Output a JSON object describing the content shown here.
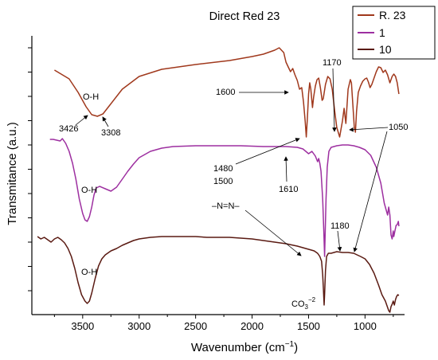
{
  "chart_data": {
    "type": "line",
    "title": "Direct Red 23",
    "xlabel_main": "Wavenumber (cm",
    "xlabel_sup": "−1",
    "xlabel_end": ")",
    "ylabel": "Transmitance (a.u.)",
    "xlim": [
      3950,
      650
    ],
    "x_reversed": true,
    "x_ticks": [
      3500,
      3000,
      2500,
      2000,
      1500,
      1000
    ],
    "y_ticks_labeled": false,
    "grid": false,
    "legend_position": "top-right",
    "series": [
      {
        "name": "R. 23",
        "color": "#a0381c",
        "points": [
          [
            3750,
            88
          ],
          [
            3620,
            99
          ],
          [
            3540,
            116
          ],
          [
            3470,
            134
          ],
          [
            3420,
            144
          ],
          [
            3370,
            146
          ],
          [
            3320,
            143
          ],
          [
            3260,
            132
          ],
          [
            3150,
            112
          ],
          [
            3000,
            96
          ],
          [
            2800,
            87
          ],
          [
            2500,
            81
          ],
          [
            2200,
            76
          ],
          [
            2000,
            71
          ],
          [
            1900,
            68
          ],
          [
            1800,
            63
          ],
          [
            1760,
            60
          ],
          [
            1720,
            66
          ],
          [
            1700,
            78
          ],
          [
            1680,
            84
          ],
          [
            1660,
            90
          ],
          [
            1640,
            86
          ],
          [
            1620,
            94
          ],
          [
            1600,
            101
          ],
          [
            1580,
            112
          ],
          [
            1560,
            110
          ],
          [
            1545,
            128
          ],
          [
            1530,
            152
          ],
          [
            1520,
            172
          ],
          [
            1510,
            148
          ],
          [
            1500,
            118
          ],
          [
            1490,
            104
          ],
          [
            1480,
            112
          ],
          [
            1465,
            135
          ],
          [
            1455,
            122
          ],
          [
            1440,
            108
          ],
          [
            1425,
            100
          ],
          [
            1410,
            98
          ],
          [
            1395,
            110
          ],
          [
            1380,
            126
          ],
          [
            1370,
            124
          ],
          [
            1350,
            106
          ],
          [
            1330,
            96
          ],
          [
            1310,
            99
          ],
          [
            1290,
            112
          ],
          [
            1270,
            138
          ],
          [
            1250,
            160
          ],
          [
            1225,
            172
          ],
          [
            1200,
            152
          ],
          [
            1185,
            136
          ],
          [
            1170,
            155
          ],
          [
            1150,
            112
          ],
          [
            1130,
            100
          ],
          [
            1120,
            104
          ],
          [
            1105,
            138
          ],
          [
            1095,
            160
          ],
          [
            1085,
            166
          ],
          [
            1075,
            140
          ],
          [
            1060,
            116
          ],
          [
            1040,
            108
          ],
          [
            1020,
            102
          ],
          [
            1000,
            99
          ],
          [
            985,
            98
          ],
          [
            970,
            103
          ],
          [
            955,
            110
          ],
          [
            940,
            106
          ],
          [
            920,
            98
          ],
          [
            900,
            90
          ],
          [
            880,
            84
          ],
          [
            860,
            85
          ],
          [
            840,
            91
          ],
          [
            820,
            88
          ],
          [
            800,
            94
          ],
          [
            780,
            104
          ],
          [
            760,
            96
          ],
          [
            745,
            93
          ],
          [
            730,
            96
          ],
          [
            715,
            104
          ],
          [
            700,
            118
          ]
        ]
      },
      {
        "name": "1",
        "color": "#9d2fa0",
        "points": [
          [
            3790,
            175
          ],
          [
            3760,
            175
          ],
          [
            3730,
            176
          ],
          [
            3700,
            177
          ],
          [
            3680,
            174
          ],
          [
            3650,
            180
          ],
          [
            3620,
            190
          ],
          [
            3590,
            205
          ],
          [
            3560,
            225
          ],
          [
            3530,
            250
          ],
          [
            3500,
            268
          ],
          [
            3480,
            276
          ],
          [
            3460,
            278
          ],
          [
            3440,
            272
          ],
          [
            3420,
            260
          ],
          [
            3400,
            245
          ],
          [
            3380,
            236
          ],
          [
            3350,
            234
          ],
          [
            3300,
            237
          ],
          [
            3250,
            240
          ],
          [
            3200,
            235
          ],
          [
            3150,
            225
          ],
          [
            3100,
            215
          ],
          [
            3050,
            206
          ],
          [
            3000,
            198
          ],
          [
            2900,
            190
          ],
          [
            2800,
            186
          ],
          [
            2700,
            184
          ],
          [
            2500,
            183
          ],
          [
            2300,
            183
          ],
          [
            2100,
            183
          ],
          [
            1900,
            184
          ],
          [
            1700,
            184
          ],
          [
            1600,
            185
          ],
          [
            1550,
            187
          ],
          [
            1500,
            193
          ],
          [
            1470,
            190
          ],
          [
            1440,
            196
          ],
          [
            1420,
            203
          ],
          [
            1410,
            199
          ],
          [
            1400,
            205
          ],
          [
            1390,
            215
          ],
          [
            1375,
            250
          ],
          [
            1365,
            290
          ],
          [
            1358,
            322
          ],
          [
            1352,
            290
          ],
          [
            1345,
            250
          ],
          [
            1335,
            210
          ],
          [
            1320,
            190
          ],
          [
            1300,
            185
          ],
          [
            1250,
            183
          ],
          [
            1200,
            182
          ],
          [
            1150,
            182
          ],
          [
            1100,
            183
          ],
          [
            1050,
            185
          ],
          [
            1000,
            188
          ],
          [
            950,
            195
          ],
          [
            900,
            210
          ],
          [
            860,
            230
          ],
          [
            830,
            255
          ],
          [
            800,
            270
          ],
          [
            790,
            260
          ],
          [
            780,
            270
          ],
          [
            770,
            295
          ],
          [
            760,
            300
          ],
          [
            750,
            290
          ],
          [
            745,
            297
          ],
          [
            735,
            290
          ],
          [
            725,
            283
          ],
          [
            715,
            282
          ],
          [
            705,
            278
          ],
          [
            700,
            284
          ]
        ]
      },
      {
        "name": "10",
        "color": "#5a1a12",
        "points": [
          [
            3900,
            297
          ],
          [
            3870,
            300
          ],
          [
            3840,
            298
          ],
          [
            3810,
            301
          ],
          [
            3780,
            304
          ],
          [
            3750,
            300
          ],
          [
            3720,
            298
          ],
          [
            3690,
            301
          ],
          [
            3660,
            305
          ],
          [
            3630,
            312
          ],
          [
            3600,
            322
          ],
          [
            3570,
            337
          ],
          [
            3540,
            355
          ],
          [
            3510,
            370
          ],
          [
            3480,
            378
          ],
          [
            3460,
            381
          ],
          [
            3440,
            378
          ],
          [
            3420,
            368
          ],
          [
            3390,
            350
          ],
          [
            3360,
            334
          ],
          [
            3330,
            325
          ],
          [
            3300,
            320
          ],
          [
            3250,
            315
          ],
          [
            3200,
            312
          ],
          [
            3150,
            308
          ],
          [
            3100,
            305
          ],
          [
            3050,
            302
          ],
          [
            3000,
            300
          ],
          [
            2900,
            298
          ],
          [
            2800,
            297
          ],
          [
            2700,
            297
          ],
          [
            2600,
            297
          ],
          [
            2500,
            297
          ],
          [
            2400,
            298
          ],
          [
            2300,
            298
          ],
          [
            2200,
            298
          ],
          [
            2100,
            299
          ],
          [
            2000,
            300
          ],
          [
            1900,
            302
          ],
          [
            1800,
            304
          ],
          [
            1700,
            306
          ],
          [
            1600,
            309
          ],
          [
            1550,
            311
          ],
          [
            1500,
            313
          ],
          [
            1450,
            315
          ],
          [
            1420,
            318
          ],
          [
            1400,
            322
          ],
          [
            1385,
            328
          ],
          [
            1375,
            345
          ],
          [
            1368,
            365
          ],
          [
            1362,
            383
          ],
          [
            1358,
            370
          ],
          [
            1350,
            340
          ],
          [
            1340,
            322
          ],
          [
            1325,
            318
          ],
          [
            1300,
            318
          ],
          [
            1250,
            316
          ],
          [
            1200,
            317
          ],
          [
            1150,
            317
          ],
          [
            1100,
            318
          ],
          [
            1070,
            320
          ],
          [
            1040,
            322
          ],
          [
            1000,
            325
          ],
          [
            960,
            332
          ],
          [
            920,
            343
          ],
          [
            880,
            358
          ],
          [
            850,
            370
          ],
          [
            820,
            378
          ],
          [
            800,
            386
          ],
          [
            790,
            390
          ],
          [
            780,
            392
          ],
          [
            770,
            385
          ],
          [
            760,
            382
          ],
          [
            750,
            378
          ],
          [
            740,
            383
          ],
          [
            730,
            376
          ],
          [
            720,
            372
          ],
          [
            710,
            370
          ],
          [
            700,
            371
          ]
        ]
      }
    ],
    "annotations": [
      {
        "text": "O-H",
        "x": 3420,
        "y": 123
      },
      {
        "text": "3426",
        "x": 3590,
        "y": 160
      },
      {
        "text": "3308",
        "x": 3250,
        "y": 163
      },
      {
        "text": "1600",
        "x": 1810,
        "y": 105
      },
      {
        "text": "1170",
        "x": 1200,
        "y": 73
      },
      {
        "text": "1050",
        "x": 1050,
        "y": 158
      },
      {
        "text": "1480",
        "x": 1980,
        "y": 211
      },
      {
        "text": "1500",
        "x": 1980,
        "y": 225
      },
      {
        "text": "1610",
        "x": 1610,
        "y": 239
      },
      {
        "text": "O-H",
        "x": 3440,
        "y": 238
      },
      {
        "text": "–N=N–",
        "x": 2010,
        "y": 257
      },
      {
        "text": "1180",
        "x": 1180,
        "y": 285
      },
      {
        "text": "O-H",
        "x": 3420,
        "y": 346
      },
      {
        "text": "CO",
        "x": 1460,
        "y": 384
      }
    ]
  }
}
